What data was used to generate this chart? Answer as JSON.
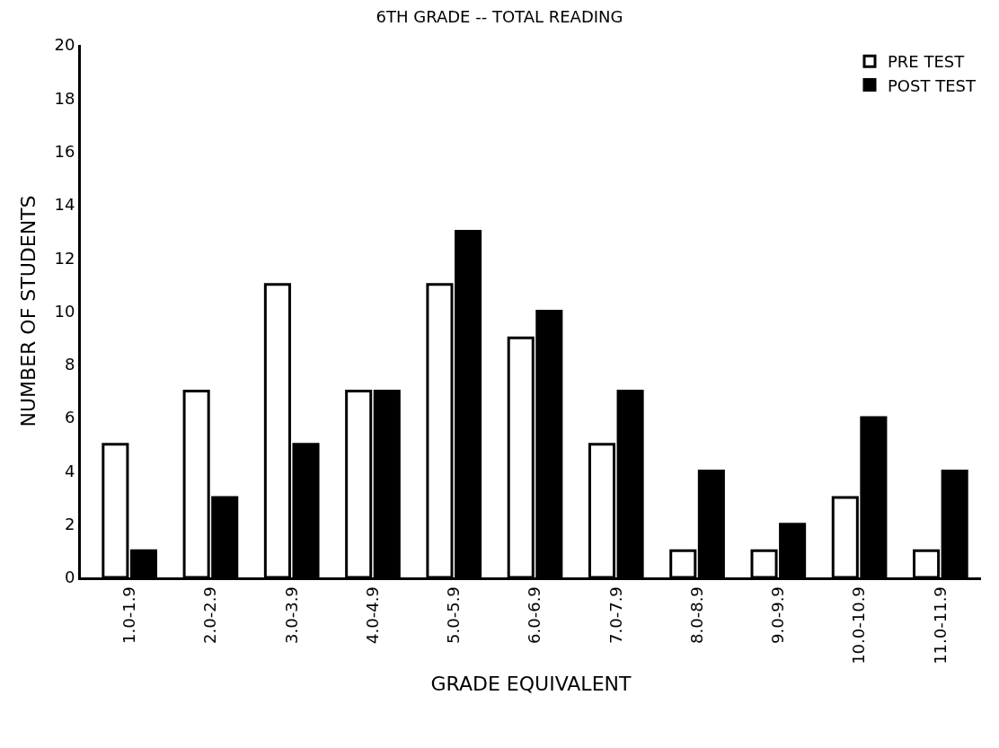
{
  "chart_data": {
    "type": "bar",
    "title": "6TH GRADE -- TOTAL READING",
    "xlabel": "GRADE EQUIVALENT",
    "ylabel": "NUMBER OF STUDENTS",
    "categories": [
      "1.0-1.9",
      "2.0-2.9",
      "3.0-3.9",
      "4.0-4.9",
      "5.0-5.9",
      "6.0-6.9",
      "7.0-7.9",
      "8.0-8.9",
      "9.0-9.9",
      "10.0-10.9",
      "11.0-11.9"
    ],
    "series": [
      {
        "name": "PRE TEST",
        "color": "#ffffff",
        "values": [
          5,
          7,
          11,
          7,
          11,
          9,
          5,
          1,
          1,
          3,
          1
        ]
      },
      {
        "name": "POST TEST",
        "color": "#000000",
        "values": [
          1,
          3,
          5,
          7,
          13,
          10,
          7,
          4,
          2,
          6,
          4
        ]
      }
    ],
    "ylim": [
      0,
      20
    ],
    "yticks": [
      0,
      2,
      4,
      6,
      8,
      10,
      12,
      14,
      16,
      18,
      20
    ],
    "legend": "top right"
  }
}
